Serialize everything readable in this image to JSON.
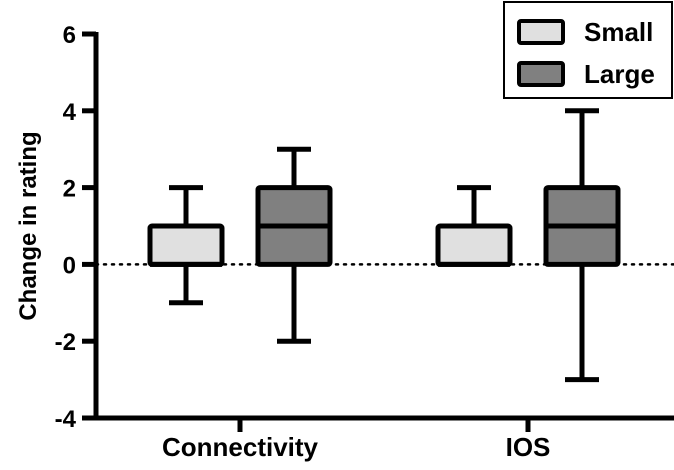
{
  "chart_data": {
    "type": "boxplot",
    "ylabel": "Change in rating",
    "ylim": [
      -4,
      6
    ],
    "yticks": [
      -4,
      -2,
      0,
      2,
      4,
      6
    ],
    "categories": [
      "Connectivity",
      "IOS"
    ],
    "reference_line": {
      "y": 0,
      "style": "dotted"
    },
    "legend": {
      "position": "top-right",
      "entries": [
        "Small",
        "Large"
      ]
    },
    "series": [
      {
        "name": "Small",
        "color": "#e0e0e0",
        "boxes": [
          {
            "category": "Connectivity",
            "min": -1,
            "q1": 0,
            "median": 0,
            "q3": 1,
            "max": 2
          },
          {
            "category": "IOS",
            "min": 0,
            "q1": 0,
            "median": 0,
            "q3": 1,
            "max": 2
          }
        ]
      },
      {
        "name": "Large",
        "color": "#808080",
        "boxes": [
          {
            "category": "Connectivity",
            "min": -2,
            "q1": 0,
            "median": 1,
            "q3": 2,
            "max": 3
          },
          {
            "category": "IOS",
            "min": -3,
            "q1": 0,
            "median": 1,
            "q3": 2,
            "max": 4
          }
        ]
      }
    ]
  }
}
